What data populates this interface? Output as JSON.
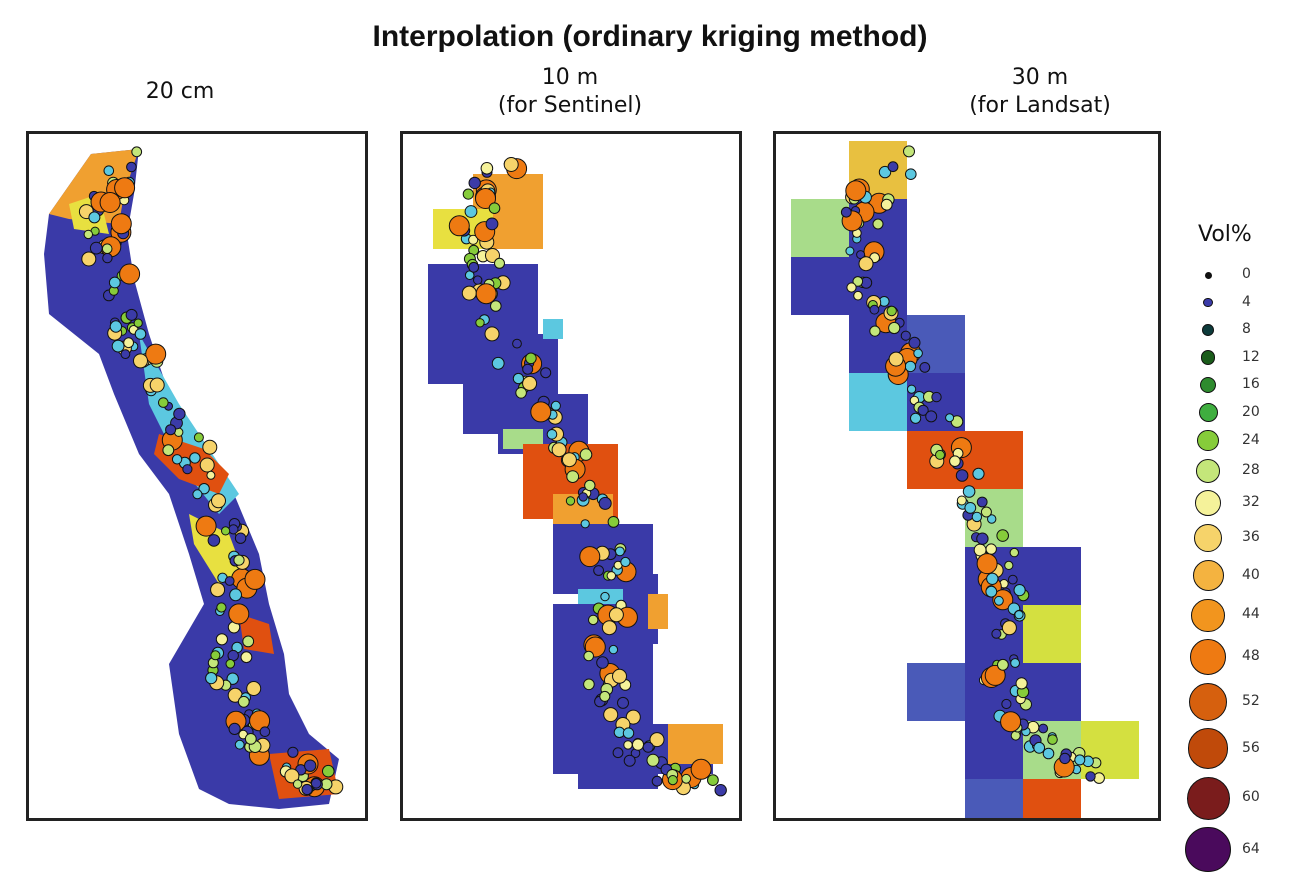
{
  "title": "Interpolation (ordinary kriging method)",
  "panels": [
    {
      "line1": "20 cm",
      "line2": ""
    },
    {
      "line1": "10 m",
      "line2": "(for Sentinel)"
    },
    {
      "line1": "30 m",
      "line2": "(for Landsat)"
    }
  ],
  "legend": {
    "title": "Vol%",
    "items": [
      {
        "label": "0",
        "color": "#111111"
      },
      {
        "label": "4",
        "color": "#3b3ba8"
      },
      {
        "label": "8",
        "color": "#0d3b3b"
      },
      {
        "label": "12",
        "color": "#1a5c1a"
      },
      {
        "label": "16",
        "color": "#2e8b2e"
      },
      {
        "label": "20",
        "color": "#3fae3f"
      },
      {
        "label": "24",
        "color": "#86cc3a"
      },
      {
        "label": "28",
        "color": "#c4e67a"
      },
      {
        "label": "32",
        "color": "#f5f29a"
      },
      {
        "label": "36",
        "color": "#f6d36a"
      },
      {
        "label": "40",
        "color": "#f4b340"
      },
      {
        "label": "44",
        "color": "#f2951e"
      },
      {
        "label": "48",
        "color": "#ee7a12"
      },
      {
        "label": "52",
        "color": "#d6600e"
      },
      {
        "label": "56",
        "color": "#c04a0a"
      },
      {
        "label": "60",
        "color": "#7a1c1c"
      },
      {
        "label": "64",
        "color": "#4a0a5c"
      }
    ]
  },
  "colors": {
    "low": "#3a3aa8",
    "cyan": "#5cc8e0",
    "green": "#a8dc8a",
    "yellow": "#e8e040",
    "orange": "#f0a030",
    "red": "#e05010"
  }
}
